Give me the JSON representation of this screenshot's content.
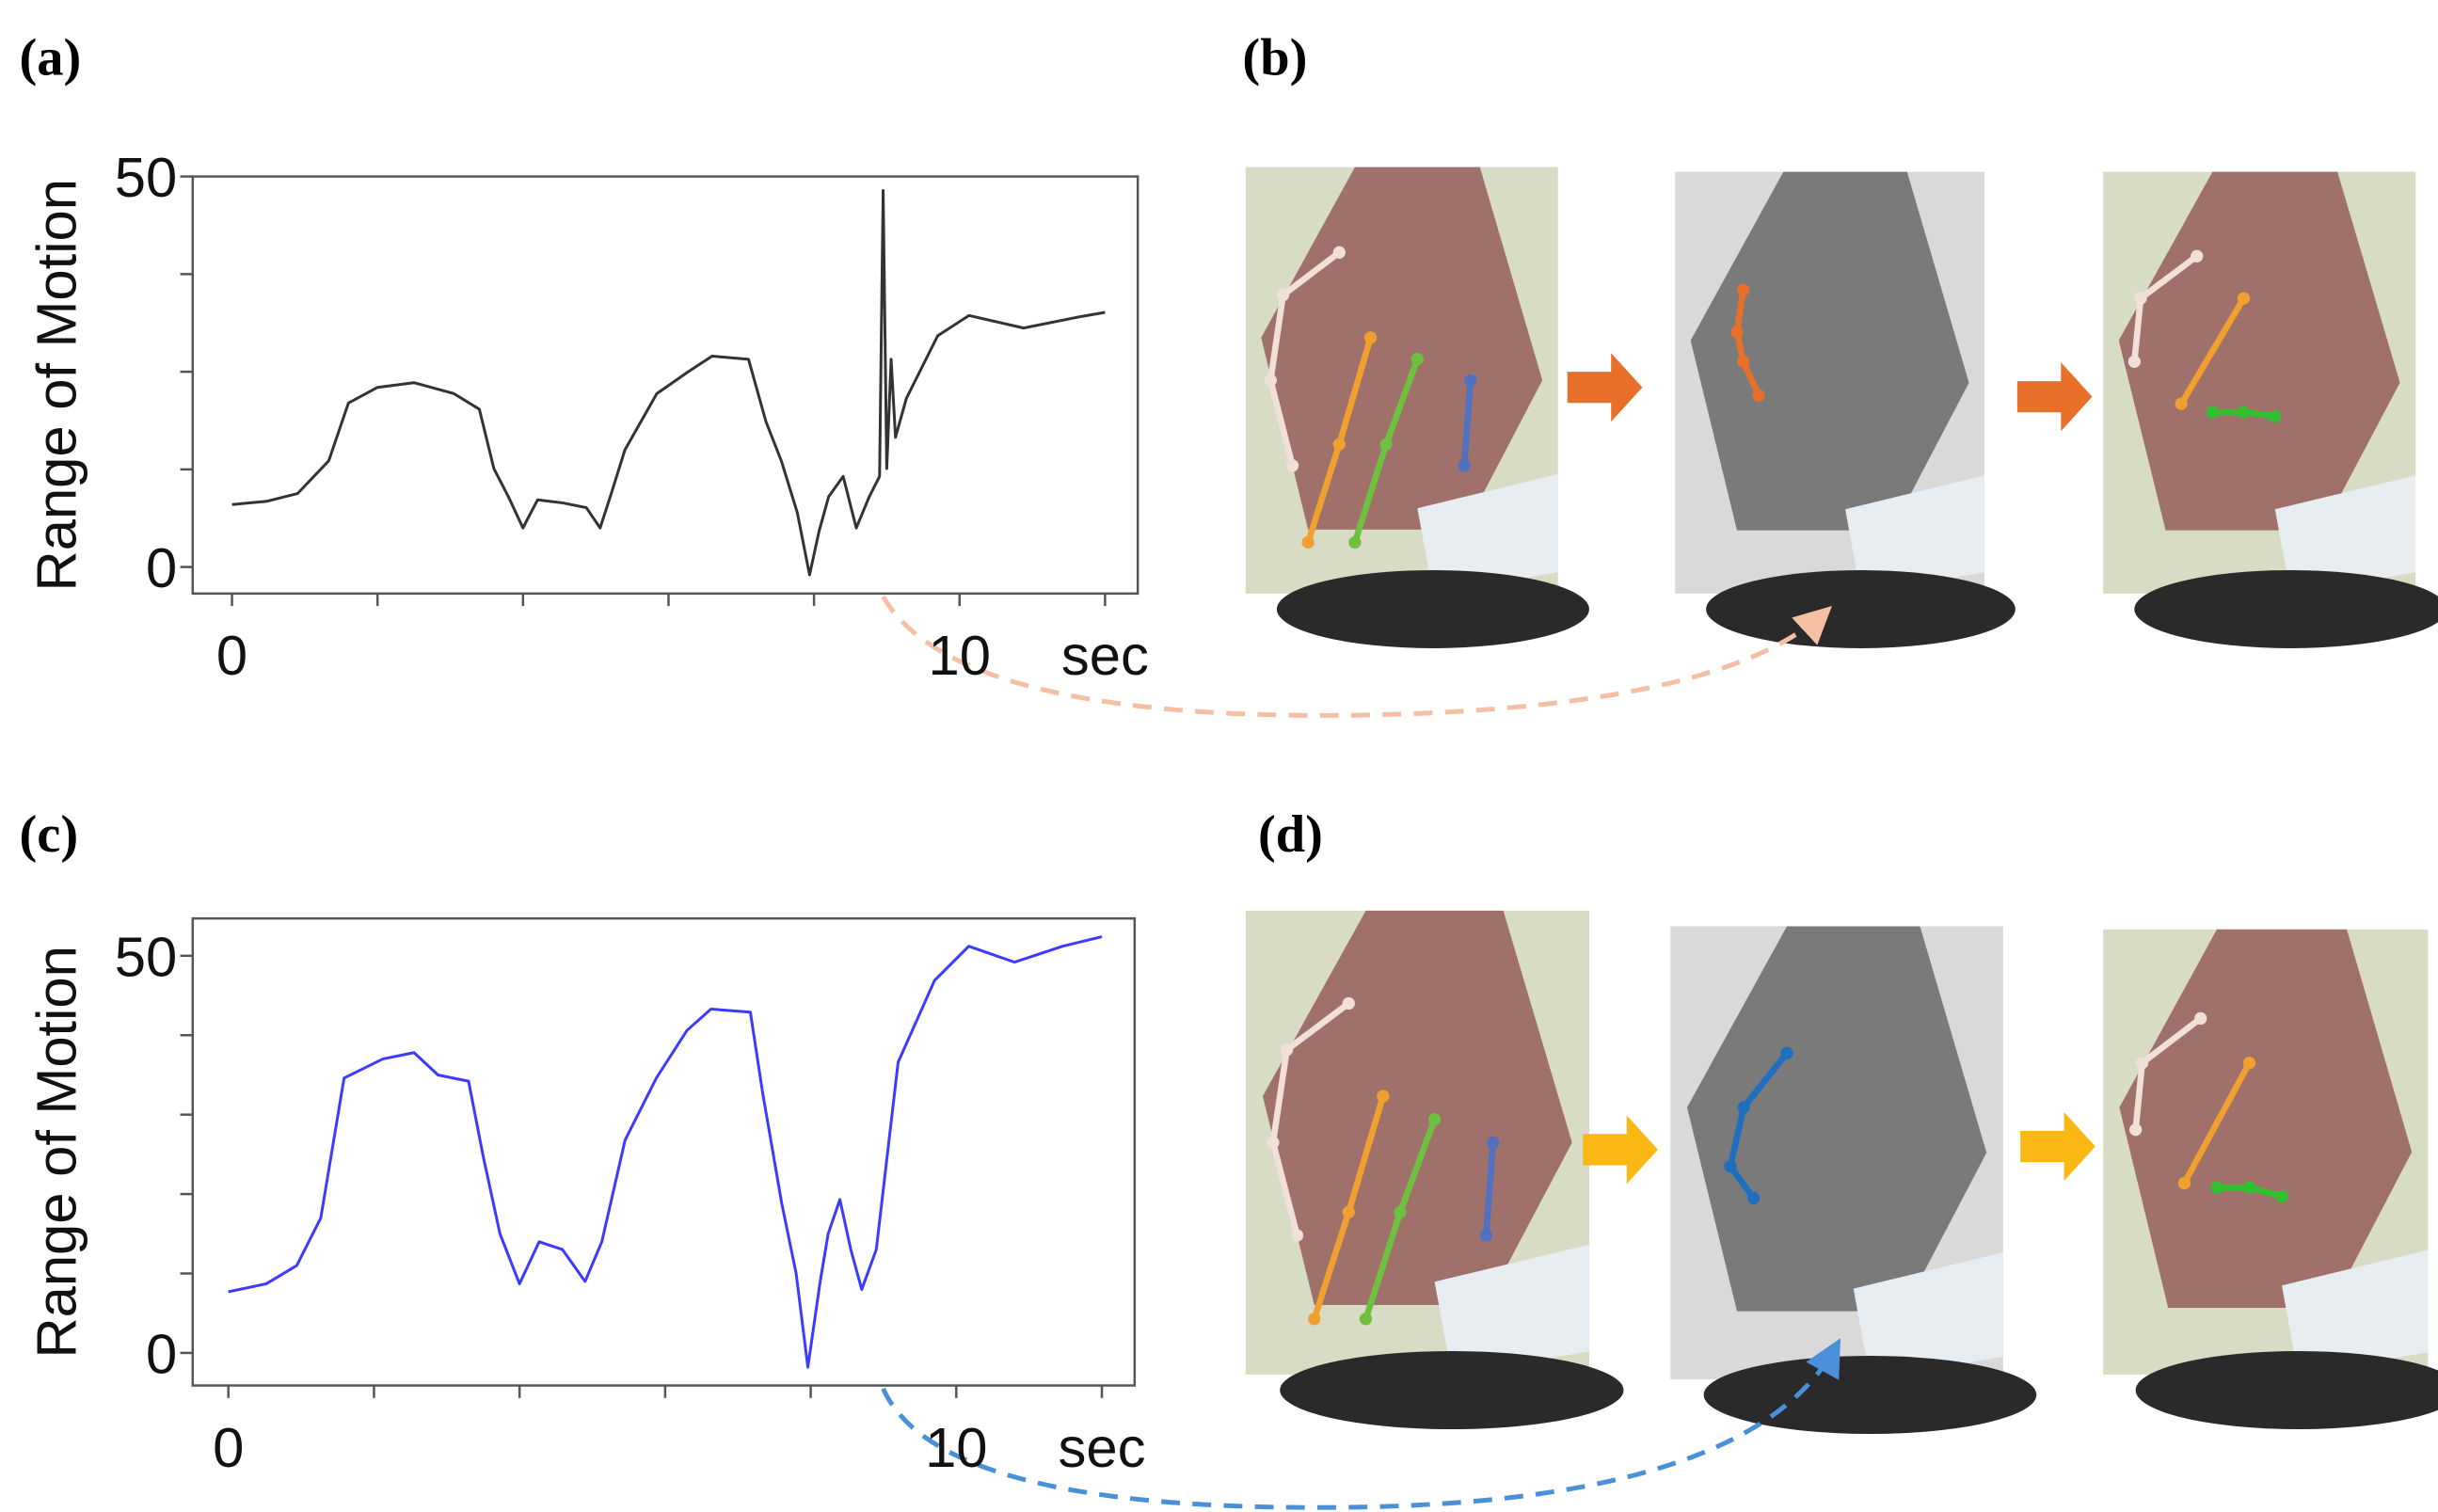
{
  "panels": [
    "(a)",
    "(b)",
    "(c)",
    "(d)"
  ],
  "chart_data": [
    {
      "type": "line",
      "ylabel": "Range of Motion",
      "color": "#333333",
      "xlim": [
        -0.54,
        12.45
      ],
      "ylim": [
        -3.4,
        50
      ],
      "xticks": [
        0,
        10,
        {
          "value": 12,
          "label": "sec"
        }
      ],
      "xminorticks": [
        2,
        4,
        6,
        8
      ],
      "yticks": [
        0,
        50
      ],
      "yminorticks": [
        12.5,
        25,
        37.5
      ],
      "x": [
        0,
        0.47,
        0.9,
        1.33,
        1.6,
        2,
        2.5,
        3.05,
        3.4,
        3.6,
        3.8,
        4.0,
        4.2,
        4.55,
        4.87,
        5.06,
        5.2,
        5.4,
        5.84,
        6.27,
        6.6,
        7.1,
        7.34,
        7.55,
        7.77,
        7.94,
        8.07,
        8.2,
        8.4,
        8.58,
        8.76,
        8.9,
        8.95,
        9.0,
        9.06,
        9.12,
        9.27,
        9.7,
        10.13,
        10.88,
        11.63,
        12
      ],
      "values": [
        8,
        8.4,
        9.4,
        13.6,
        21,
        23,
        23.6,
        22.2,
        20.2,
        12.6,
        9,
        5,
        8.6,
        8.2,
        7.6,
        5,
        9,
        15,
        22.2,
        25,
        27,
        26.6,
        18.6,
        13.6,
        7,
        -1,
        4.6,
        9,
        11.6,
        5,
        9,
        11.6,
        48.2,
        12.6,
        26.6,
        16.6,
        21.6,
        29.6,
        32.2,
        30.6,
        32,
        32.6
      ]
    },
    {
      "type": "line",
      "ylabel": "Range of Motion",
      "color": "#3b3bff",
      "xlim": [
        -0.49,
        12.45
      ],
      "ylim": [
        -4.1,
        54.7
      ],
      "xticks": [
        0,
        10,
        {
          "value": 12,
          "label": "sec"
        }
      ],
      "xminorticks": [
        2,
        4,
        6,
        8
      ],
      "yticks": [
        0,
        50
      ],
      "yminorticks": [
        10,
        20,
        30,
        40
      ],
      "x": [
        0,
        0.52,
        0.94,
        1.27,
        1.59,
        2.12,
        2.55,
        2.88,
        3.3,
        3.5,
        3.73,
        4.0,
        4.27,
        4.59,
        4.9,
        5.13,
        5.45,
        5.88,
        6.3,
        6.63,
        7.17,
        7.34,
        7.6,
        7.8,
        7.96,
        8.13,
        8.24,
        8.4,
        8.55,
        8.7,
        8.9,
        9.2,
        9.7,
        10.17,
        10.8,
        11.46,
        12
      ],
      "values": [
        7.7,
        8.7,
        11,
        17,
        34.6,
        37,
        37.8,
        35,
        34.2,
        24.8,
        15,
        8.7,
        14,
        13,
        9,
        14,
        26.8,
        34.6,
        40.6,
        43.3,
        42.9,
        32.7,
        18.9,
        10,
        -1.8,
        9,
        15,
        19.3,
        13,
        8,
        13,
        36.6,
        46.9,
        51.2,
        49.2,
        51.2,
        52.4
      ]
    }
  ]
}
